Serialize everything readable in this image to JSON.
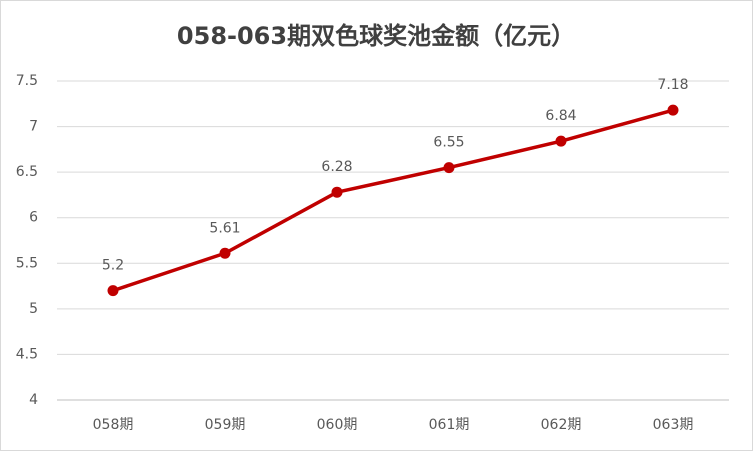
{
  "chart_data": {
    "type": "line",
    "title": "058-063期双色球奖池金额（亿元）",
    "categories": [
      "058期",
      "059期",
      "060期",
      "061期",
      "062期",
      "063期"
    ],
    "values": [
      5.2,
      5.61,
      6.28,
      6.55,
      6.84,
      7.18
    ],
    "color": "#c00000",
    "ylim": [
      4,
      7.5
    ],
    "yticks": [
      4,
      4.5,
      5,
      5.5,
      6,
      6.5,
      7,
      7.5
    ],
    "grid": true
  }
}
